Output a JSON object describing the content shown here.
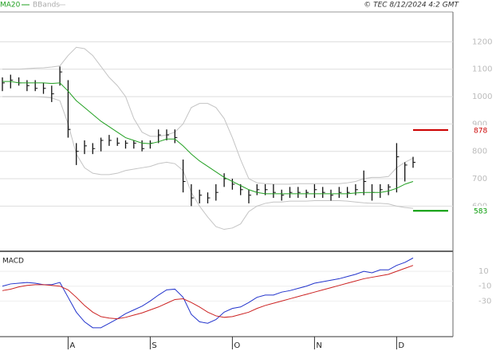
{
  "chart_data": [
    {
      "type": "ohlc",
      "annotation": "© TEC 8/12/2024 4:2 GMT",
      "categories": [
        null,
        null,
        null,
        null,
        null,
        null,
        null,
        null,
        "A",
        null,
        null,
        null,
        null,
        null,
        null,
        null,
        null,
        null,
        "S",
        null,
        null,
        null,
        null,
        null,
        null,
        null,
        null,
        null,
        "O",
        null,
        null,
        null,
        null,
        null,
        null,
        null,
        null,
        null,
        "N",
        null,
        null,
        null,
        null,
        null,
        null,
        null,
        null,
        null,
        "D",
        null,
        null
      ],
      "high": [
        1070,
        1080,
        1070,
        1060,
        1060,
        1050,
        1040,
        1110,
        1060,
        830,
        840,
        830,
        850,
        860,
        850,
        840,
        840,
        840,
        840,
        880,
        880,
        880,
        770,
        680,
        660,
        650,
        680,
        720,
        700,
        680,
        660,
        680,
        680,
        680,
        660,
        670,
        670,
        660,
        680,
        670,
        660,
        670,
        670,
        680,
        730,
        680,
        680,
        680,
        830,
        760,
        780
      ],
      "low": [
        1020,
        1030,
        1040,
        1020,
        1020,
        1010,
        980,
        1040,
        850,
        750,
        790,
        790,
        800,
        820,
        820,
        810,
        810,
        800,
        810,
        830,
        840,
        830,
        650,
        600,
        610,
        610,
        620,
        670,
        660,
        640,
        610,
        640,
        640,
        630,
        620,
        630,
        630,
        630,
        630,
        630,
        620,
        630,
        630,
        640,
        640,
        620,
        630,
        640,
        650,
        690,
        740
      ],
      "close": [
        1050,
        1060,
        1050,
        1040,
        1030,
        1030,
        1010,
        1090,
        880,
        800,
        820,
        810,
        840,
        840,
        830,
        830,
        830,
        810,
        830,
        860,
        860,
        850,
        690,
        630,
        640,
        630,
        650,
        700,
        680,
        660,
        640,
        660,
        660,
        650,
        640,
        650,
        650,
        650,
        660,
        650,
        640,
        650,
        650,
        660,
        690,
        650,
        660,
        670,
        780,
        750,
        760
      ],
      "series": [
        {
          "name": "MA20",
          "color": "#22a022",
          "values": [
            1055,
            1055,
            1050,
            1050,
            1050,
            1050,
            1048,
            1050,
            1020,
            985,
            960,
            935,
            910,
            890,
            870,
            850,
            840,
            830,
            828,
            835,
            845,
            845,
            820,
            790,
            765,
            745,
            725,
            705,
            690,
            675,
            660,
            650,
            645,
            645,
            645,
            645,
            645,
            645,
            645,
            645,
            645,
            645,
            645,
            648,
            650,
            650,
            650,
            655,
            665,
            680,
            690
          ]
        },
        {
          "name": "BBands",
          "color": "#c4c4c4",
          "upper": [
            1100,
            1100,
            1100,
            1102,
            1104,
            1105,
            1108,
            1112,
            1150,
            1180,
            1175,
            1150,
            1110,
            1070,
            1040,
            1000,
            920,
            870,
            855,
            855,
            860,
            870,
            900,
            960,
            975,
            975,
            960,
            920,
            850,
            770,
            700,
            685,
            682,
            680,
            680,
            680,
            682,
            682,
            682,
            682,
            682,
            682,
            685,
            690,
            700,
            705,
            705,
            708,
            740,
            760,
            775
          ],
          "lower": [
            1000,
            1000,
            1000,
            1000,
            1000,
            998,
            995,
            985,
            900,
            790,
            740,
            720,
            715,
            715,
            720,
            730,
            735,
            740,
            745,
            755,
            760,
            755,
            730,
            650,
            600,
            560,
            525,
            515,
            520,
            535,
            580,
            600,
            610,
            615,
            615,
            618,
            618,
            618,
            620,
            620,
            620,
            620,
            618,
            615,
            612,
            610,
            610,
            608,
            600,
            595,
            592
          ]
        }
      ],
      "levels": [
        {
          "value": 878,
          "color": "#cc0000"
        },
        {
          "value": 583,
          "color": "#009900"
        }
      ],
      "ylim": [
        435,
        1309
      ],
      "yticks": [
        600,
        700,
        800,
        900,
        1000,
        1100,
        1200
      ],
      "grid": true
    },
    {
      "type": "line",
      "title": "MACD",
      "series": [
        {
          "color": "#2233cc",
          "values": [
            -10,
            -7,
            -6,
            -5,
            -6,
            -8,
            -8,
            -5,
            -25,
            -45,
            -58,
            -66,
            -66,
            -60,
            -54,
            -47,
            -42,
            -37,
            -30,
            -22,
            -15,
            -14,
            -25,
            -48,
            -58,
            -60,
            -55,
            -45,
            -40,
            -38,
            -32,
            -25,
            -22,
            -22,
            -18,
            -16,
            -13,
            -10,
            -6,
            -4,
            -2,
            0,
            3,
            6,
            10,
            8,
            12,
            12,
            18,
            22,
            28
          ]
        },
        {
          "color": "#cc2222",
          "values": [
            -16,
            -14,
            -11,
            -9,
            -8,
            -8,
            -9,
            -10,
            -15,
            -25,
            -36,
            -45,
            -51,
            -53,
            -54,
            -52,
            -49,
            -46,
            -42,
            -38,
            -33,
            -28,
            -27,
            -32,
            -38,
            -45,
            -50,
            -52,
            -51,
            -48,
            -45,
            -40,
            -36,
            -33,
            -30,
            -27,
            -24,
            -21,
            -18,
            -15,
            -12,
            -9,
            -6,
            -3,
            0,
            2,
            4,
            6,
            10,
            14,
            18
          ]
        }
      ],
      "ylim": [
        -78,
        37
      ],
      "yticks": [
        10,
        -10,
        -30
      ],
      "grid": true
    }
  ]
}
